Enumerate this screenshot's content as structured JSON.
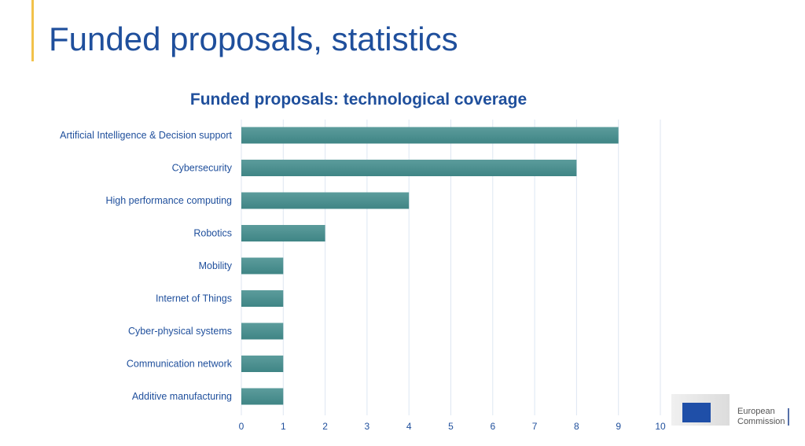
{
  "slide": {
    "title": "Funded proposals, statistics"
  },
  "logo": {
    "line1": "European",
    "line2": "Commission"
  },
  "chart_data": {
    "type": "bar",
    "orientation": "horizontal",
    "title": "Funded proposals: technological coverage",
    "categories": [
      "Artificial Intelligence & Decision support",
      "Cybersecurity",
      "High performance computing",
      "Robotics",
      "Mobility",
      "Internet of Things",
      "Cyber-physical systems",
      "Communication network",
      "Additive manufacturing"
    ],
    "values": [
      9,
      8,
      4,
      2,
      1,
      1,
      1,
      1,
      1
    ],
    "xlim": [
      0,
      10
    ],
    "xticks": [
      "0",
      "1",
      "2",
      "3",
      "4",
      "5",
      "6",
      "7",
      "8",
      "9",
      "10"
    ],
    "grid": true,
    "xlabel": "",
    "ylabel": "",
    "colors": {
      "bar": "#3f8585",
      "text": "#1f4f9c",
      "grid": "#dde6f2"
    }
  }
}
